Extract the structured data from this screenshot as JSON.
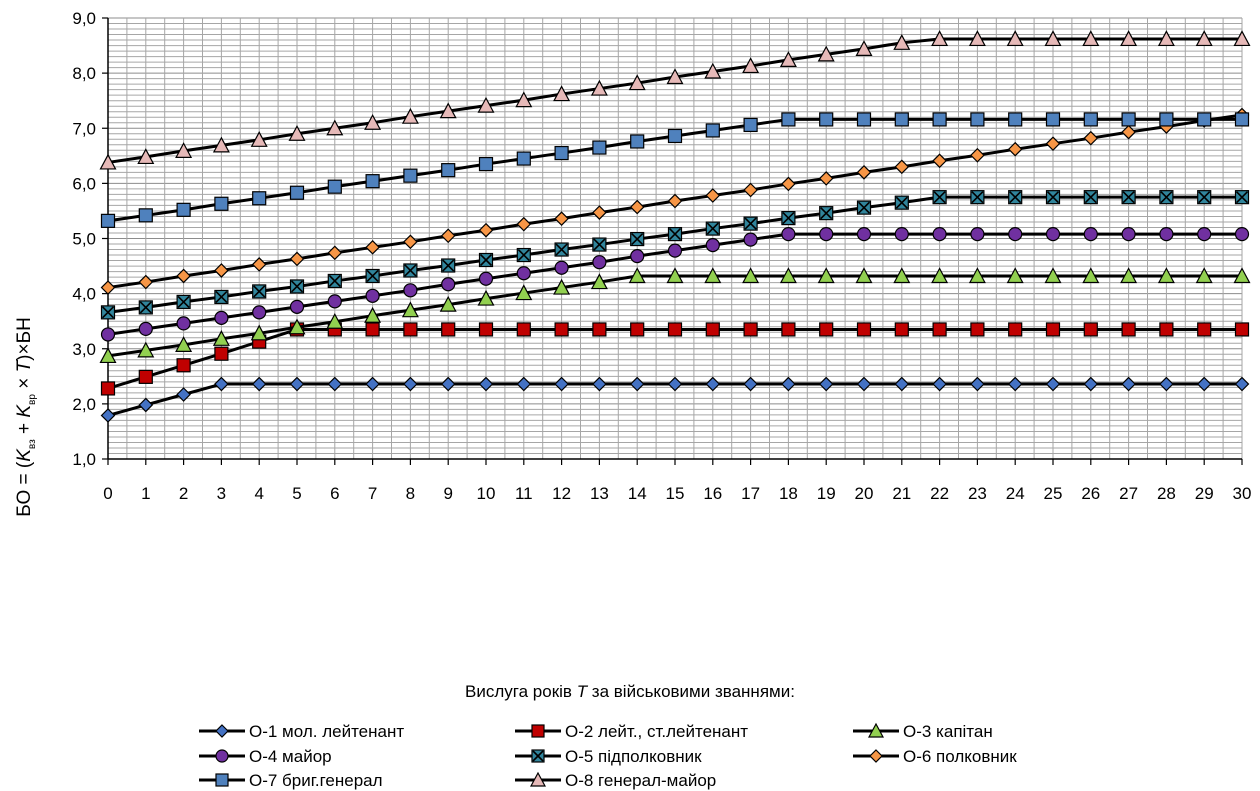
{
  "chart_data": {
    "type": "line",
    "title": "",
    "xlabel_prefix": "Вислуга років ",
    "xlabel_var": "T",
    "xlabel_suffix": " за військовими званнями:",
    "ylabel": {
      "prefix": "БО = (",
      "k1": "K",
      "k1_sub": "вз",
      "plus": " + ",
      "k2": "K",
      "k2_sub": "вр",
      "times": " × ",
      "t": "T",
      "suffix": ")×БН"
    },
    "ylim": [
      1.0,
      9.0
    ],
    "xlim": [
      0,
      30
    ],
    "yticks": [
      "1,0",
      "2,0",
      "3,0",
      "4,0",
      "5,0",
      "6,0",
      "7,0",
      "8,0",
      "9,0"
    ],
    "xticks": [
      "0",
      "1",
      "2",
      "3",
      "4",
      "5",
      "6",
      "7",
      "8",
      "9",
      "10",
      "11",
      "12",
      "13",
      "14",
      "15",
      "16",
      "17",
      "18",
      "19",
      "20",
      "21",
      "22",
      "23",
      "24",
      "25",
      "26",
      "27",
      "28",
      "29",
      "30"
    ],
    "grid": true,
    "legend_position": "bottom",
    "x": [
      0,
      1,
      2,
      3,
      4,
      5,
      6,
      7,
      8,
      9,
      10,
      11,
      12,
      13,
      14,
      15,
      16,
      17,
      18,
      19,
      20,
      21,
      22,
      23,
      24,
      25,
      26,
      27,
      28,
      29,
      30
    ],
    "series": [
      {
        "name": "О-1 мол. лейтенант",
        "color": "#4472c4",
        "marker": "diamond",
        "values": [
          1.79,
          1.98,
          2.17,
          2.36,
          2.36,
          2.36,
          2.36,
          2.36,
          2.36,
          2.36,
          2.36,
          2.36,
          2.36,
          2.36,
          2.36,
          2.36,
          2.36,
          2.36,
          2.36,
          2.36,
          2.36,
          2.36,
          2.36,
          2.36,
          2.36,
          2.36,
          2.36,
          2.36,
          2.36,
          2.36,
          2.36
        ]
      },
      {
        "name": "О-2 лейт., ст.лейтенант",
        "color": "#c00000",
        "marker": "square",
        "values": [
          2.28,
          2.49,
          2.7,
          2.91,
          3.13,
          3.35,
          3.35,
          3.35,
          3.35,
          3.35,
          3.35,
          3.35,
          3.35,
          3.35,
          3.35,
          3.35,
          3.35,
          3.35,
          3.35,
          3.35,
          3.35,
          3.35,
          3.35,
          3.35,
          3.35,
          3.35,
          3.35,
          3.35,
          3.35,
          3.35,
          3.35
        ]
      },
      {
        "name": "О-3 капітан",
        "color": "#92d050",
        "marker": "triangle",
        "values": [
          2.87,
          2.97,
          3.07,
          3.18,
          3.28,
          3.39,
          3.49,
          3.6,
          3.7,
          3.8,
          3.91,
          4.01,
          4.11,
          4.21,
          4.32,
          4.32,
          4.32,
          4.32,
          4.32,
          4.32,
          4.32,
          4.32,
          4.32,
          4.32,
          4.32,
          4.32,
          4.32,
          4.32,
          4.32,
          4.32,
          4.32
        ]
      },
      {
        "name": "О-4 майор",
        "color": "#7030a0",
        "marker": "circle",
        "values": [
          3.26,
          3.36,
          3.46,
          3.56,
          3.66,
          3.76,
          3.86,
          3.96,
          4.06,
          4.17,
          4.27,
          4.37,
          4.47,
          4.57,
          4.68,
          4.78,
          4.88,
          4.98,
          5.08,
          5.08,
          5.08,
          5.08,
          5.08,
          5.08,
          5.08,
          5.08,
          5.08,
          5.08,
          5.08,
          5.08,
          5.08
        ]
      },
      {
        "name": "О-5 підполковник",
        "color": "#31859c",
        "marker": "xsquare",
        "values": [
          3.66,
          3.75,
          3.85,
          3.94,
          4.04,
          4.13,
          4.23,
          4.32,
          4.42,
          4.51,
          4.61,
          4.7,
          4.8,
          4.89,
          4.99,
          5.08,
          5.18,
          5.27,
          5.37,
          5.46,
          5.56,
          5.65,
          5.75,
          5.75,
          5.75,
          5.75,
          5.75,
          5.75,
          5.75,
          5.75,
          5.75
        ]
      },
      {
        "name": "О-6 полковник",
        "color": "#f79646",
        "marker": "diamond",
        "values": [
          4.11,
          4.21,
          4.32,
          4.42,
          4.53,
          4.63,
          4.74,
          4.84,
          4.94,
          5.05,
          5.15,
          5.26,
          5.36,
          5.47,
          5.57,
          5.68,
          5.78,
          5.88,
          5.99,
          6.09,
          6.2,
          6.3,
          6.41,
          6.51,
          6.62,
          6.72,
          6.82,
          6.93,
          7.03,
          7.14,
          7.24
        ]
      },
      {
        "name": "О-7 бриг.генерал",
        "color": "#4f81bd",
        "marker": "square",
        "values": [
          5.32,
          5.42,
          5.52,
          5.63,
          5.73,
          5.83,
          5.94,
          6.04,
          6.14,
          6.24,
          6.35,
          6.45,
          6.55,
          6.65,
          6.76,
          6.86,
          6.96,
          7.06,
          7.16,
          7.16,
          7.16,
          7.16,
          7.16,
          7.16,
          7.16,
          7.16,
          7.16,
          7.16,
          7.16,
          7.16,
          7.16
        ]
      },
      {
        "name": "О-8 генерал-майор",
        "color": "#e6b9b8",
        "marker": "triangle",
        "values": [
          6.38,
          6.48,
          6.59,
          6.69,
          6.79,
          6.9,
          7.0,
          7.1,
          7.21,
          7.31,
          7.41,
          7.51,
          7.62,
          7.72,
          7.82,
          7.93,
          8.03,
          8.13,
          8.24,
          8.34,
          8.44,
          8.55,
          8.62,
          8.62,
          8.62,
          8.62,
          8.62,
          8.62,
          8.62,
          8.62,
          8.62
        ]
      }
    ]
  }
}
